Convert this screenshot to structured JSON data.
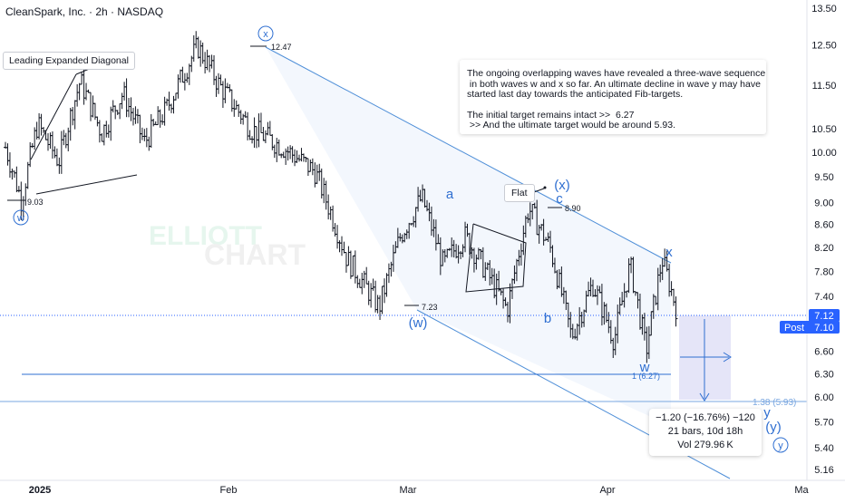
{
  "header": {
    "symbol_line": "CleanSpark, Inc. · 2h · NASDAQ"
  },
  "watermark": {
    "line1": "ELLIOTT",
    "line2": "CHART"
  },
  "note": {
    "line1": "The ongoing overlapping waves have revealed a three-wave sequence",
    "line2": " in both waves w and x so far. An ultimate decline in wave y may have",
    "line3": "started last day towards the anticipated Fib-targets.",
    "line4": "The initial target remains intact >>  6.27",
    "line5": " >> And the ultimate target would be around 5.93."
  },
  "annotations": {
    "diagonal_label": "Leading Expanded Diagonal",
    "flat_label": "Flat"
  },
  "stats_box": {
    "line1": "−1.20 (−16.76%) −120",
    "line2": "21 bars, 10d 18h",
    "line3": "Vol 279.96 K"
  },
  "colors": {
    "wave_blue": "#2f6fd1",
    "channel": "#4f8fd8",
    "candle": "#131722",
    "price_line": "#2962ff",
    "target_line": "#7aa7e0",
    "projection_fill": "#dcdcf6"
  },
  "chart_data": {
    "type": "candlestick",
    "title": "CleanSpark, Inc. · 2h · NASDAQ",
    "ylim": [
      5.0,
      13.75
    ],
    "yscale": "log",
    "y_ticks": [
      13.5,
      12.5,
      11.5,
      10.5,
      10.0,
      9.5,
      9.0,
      8.6,
      8.2,
      7.8,
      7.4,
      7.12,
      6.6,
      6.3,
      6.0,
      5.7,
      5.4,
      5.16
    ],
    "y_tick_labels": [
      "13.50",
      "12.50",
      "11.50",
      "10.50",
      "10.00",
      "9.50",
      "9.00",
      "8.60",
      "8.20",
      "7.80",
      "7.40",
      "7.12",
      "6.60",
      "6.30",
      "6.00",
      "5.70",
      "5.40",
      "5.16"
    ],
    "x_labels": [
      "2025",
      "Feb",
      "Mar",
      "Apr",
      "Ma"
    ],
    "last_price": {
      "value": 7.12,
      "label": "7.12"
    },
    "post_price": {
      "label": "Post",
      "value": 7.1,
      "value_label": "7.10"
    },
    "price_labels": [
      {
        "text": "12.47",
        "value": 12.47
      },
      {
        "text": "9.03",
        "value": 9.03
      },
      {
        "text": "8.90",
        "value": 8.9
      },
      {
        "text": "7.23",
        "value": 7.23
      }
    ],
    "targets": [
      {
        "label": "1 (6.27)",
        "value": 6.27
      },
      {
        "label": "1.38 (5.93)",
        "value": 5.93
      }
    ],
    "wave_labels": [
      {
        "text": "w",
        "degree": "circled",
        "value": 8.75
      },
      {
        "text": "x",
        "degree": "circled",
        "value": 12.9
      },
      {
        "text": "y",
        "degree": "circled",
        "value": 5.41
      },
      {
        "text": "(w)",
        "value": 7.06
      },
      {
        "text": "(x)",
        "value": 9.22
      },
      {
        "text": "(y)",
        "value": 5.64
      },
      {
        "text": "a",
        "value": 9.13
      },
      {
        "text": "b",
        "value": 7.13
      },
      {
        "text": "c",
        "value": 9.03
      },
      {
        "text": "w",
        "value": 6.38
      },
      {
        "text": "x",
        "value": 8.15
      },
      {
        "text": "y",
        "value": 5.8
      }
    ],
    "measure": {
      "change": -1.2,
      "change_pct": -16.76,
      "ticks": -120,
      "bars": 21,
      "duration": "10d 18h",
      "volume": "279.96K"
    },
    "series": [
      {
        "swing_points": [
          {
            "t": 0,
            "price": 10.1
          },
          {
            "t": 3,
            "price": 9.03
          },
          {
            "t": 6,
            "price": 10.6
          },
          {
            "t": 10,
            "price": 9.8
          },
          {
            "t": 14,
            "price": 11.6
          },
          {
            "t": 18,
            "price": 10.4
          },
          {
            "t": 22,
            "price": 11.3
          },
          {
            "t": 26,
            "price": 10.2
          },
          {
            "t": 30,
            "price": 10.9
          },
          {
            "t": 36,
            "price": 12.47
          },
          {
            "t": 40,
            "price": 11.5
          },
          {
            "t": 46,
            "price": 10.5
          },
          {
            "t": 52,
            "price": 10.1
          },
          {
            "t": 58,
            "price": 9.6
          },
          {
            "t": 64,
            "price": 8.0
          },
          {
            "t": 70,
            "price": 7.23
          },
          {
            "t": 74,
            "price": 8.4
          },
          {
            "t": 78,
            "price": 9.1
          },
          {
            "t": 82,
            "price": 7.9
          },
          {
            "t": 86,
            "price": 8.4
          },
          {
            "t": 90,
            "price": 7.8
          },
          {
            "t": 94,
            "price": 7.2
          },
          {
            "t": 98,
            "price": 8.9
          },
          {
            "t": 102,
            "price": 8.2
          },
          {
            "t": 106,
            "price": 6.8
          },
          {
            "t": 110,
            "price": 7.6
          },
          {
            "t": 114,
            "price": 6.75
          },
          {
            "t": 117,
            "price": 7.9
          },
          {
            "t": 120,
            "price": 6.6
          },
          {
            "t": 123,
            "price": 8.0
          },
          {
            "t": 126,
            "price": 7.12
          }
        ]
      }
    ]
  }
}
